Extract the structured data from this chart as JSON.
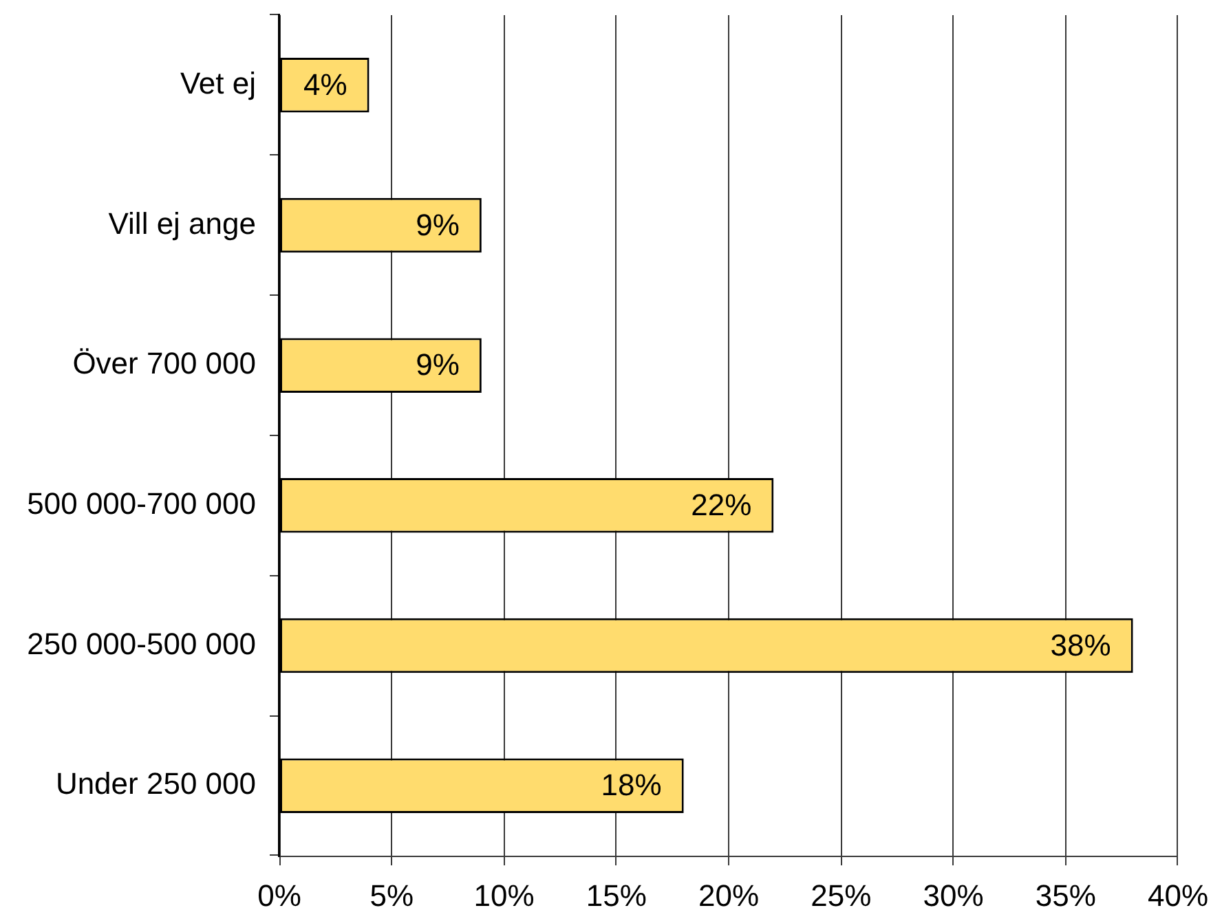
{
  "chart_data": {
    "type": "bar",
    "orientation": "horizontal",
    "categories": [
      "Vet ej",
      "Vill ej ange",
      "Över 700 000",
      "500 000-700 000",
      "250 000-500 000",
      "Under 250 000"
    ],
    "values": [
      4,
      9,
      9,
      22,
      38,
      18
    ],
    "value_labels": [
      "4%",
      "9%",
      "9%",
      "22%",
      "38%",
      "18%"
    ],
    "color": "#ffdc6e",
    "xlim": [
      0,
      40
    ],
    "xticks": [
      {
        "value": 0,
        "label": "0%"
      },
      {
        "value": 5,
        "label": "5%"
      },
      {
        "value": 10,
        "label": "10%"
      },
      {
        "value": 15,
        "label": "15%"
      },
      {
        "value": 20,
        "label": "20%"
      },
      {
        "value": 25,
        "label": "25%"
      },
      {
        "value": 30,
        "label": "30%"
      },
      {
        "value": 35,
        "label": "35%"
      },
      {
        "value": 40,
        "label": "40%"
      }
    ],
    "grid": "x"
  }
}
